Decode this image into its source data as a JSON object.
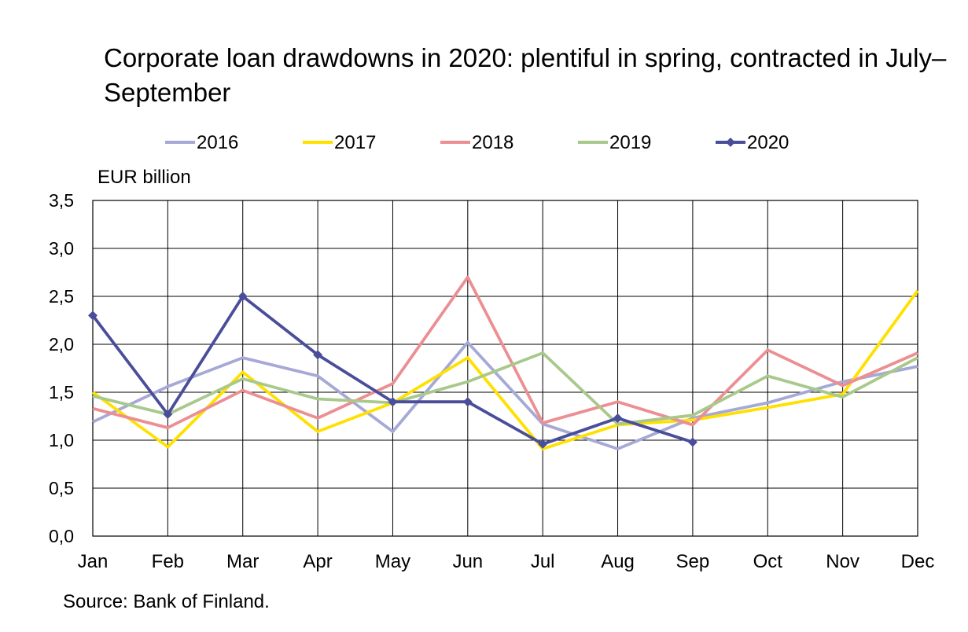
{
  "chart_data": {
    "type": "line",
    "title": "Corporate loan drawdowns in 2020: plentiful in spring, contracted in July–September",
    "ylabel": "EUR billion",
    "xlabel": "",
    "categories": [
      "Jan",
      "Feb",
      "Mar",
      "Apr",
      "May",
      "Jun",
      "Jul",
      "Aug",
      "Sep",
      "Oct",
      "Nov",
      "Dec"
    ],
    "yticks": [
      "0,0",
      "0,5",
      "1,0",
      "1,5",
      "2,0",
      "2,5",
      "3,0",
      "3,5"
    ],
    "ylim": [
      0,
      3.5
    ],
    "grid": true,
    "legend_position": "top",
    "series": [
      {
        "name": "2016",
        "color": "#a6a9d6",
        "marker": "none",
        "values": [
          1.19,
          1.56,
          1.86,
          1.67,
          1.09,
          2.02,
          1.17,
          0.91,
          1.23,
          1.39,
          1.61,
          1.77
        ]
      },
      {
        "name": "2017",
        "color": "#ffe000",
        "marker": "none",
        "values": [
          1.5,
          0.93,
          1.71,
          1.09,
          1.39,
          1.86,
          0.91,
          1.16,
          1.21,
          1.34,
          1.48,
          2.56
        ]
      },
      {
        "name": "2018",
        "color": "#ec8f93",
        "marker": "none",
        "values": [
          1.33,
          1.13,
          1.52,
          1.23,
          1.59,
          2.7,
          1.18,
          1.4,
          1.16,
          1.94,
          1.57,
          1.91
        ]
      },
      {
        "name": "2019",
        "color": "#a8c98b",
        "marker": "none",
        "values": [
          1.46,
          1.27,
          1.64,
          1.43,
          1.39,
          1.61,
          1.91,
          1.17,
          1.26,
          1.67,
          1.45,
          1.86
        ]
      },
      {
        "name": "2020",
        "color": "#4a4e9a",
        "marker": "diamond",
        "values": [
          2.3,
          1.27,
          2.5,
          1.89,
          1.4,
          1.4,
          0.96,
          1.23,
          0.98,
          null,
          null,
          null
        ]
      }
    ],
    "source": "Source: Bank of Finland."
  }
}
